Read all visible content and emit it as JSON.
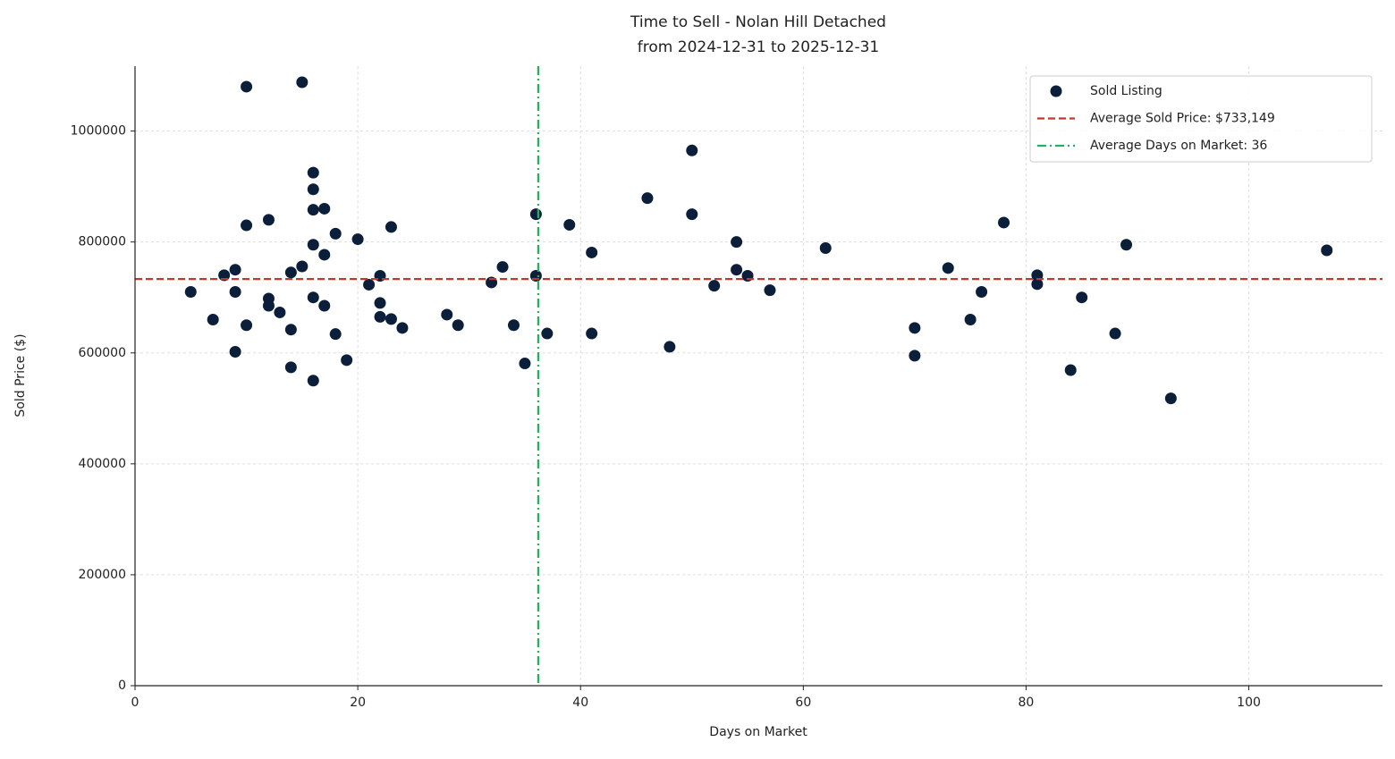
{
  "chart_data": {
    "type": "scatter",
    "title": "Time to Sell - Nolan Hill Detached",
    "subtitle": "from 2024-12-31 to 2025-12-31",
    "x_label": "Days on Market",
    "y_label": "Sold Price ($)",
    "x": [
      10,
      15,
      16,
      16,
      16,
      17,
      16,
      17,
      18,
      10,
      12,
      20,
      23,
      5,
      7,
      8,
      9,
      9,
      9,
      10,
      12,
      12,
      13,
      14,
      14,
      14,
      15,
      16,
      17,
      18,
      16,
      19,
      21,
      22,
      22,
      22,
      23,
      24,
      28,
      29,
      32,
      33,
      34,
      35,
      36,
      36,
      37,
      39,
      41,
      41,
      46,
      48,
      50,
      50,
      52,
      54,
      54,
      55,
      57,
      62,
      70,
      70,
      73,
      75,
      76,
      78,
      81,
      81,
      84,
      85,
      88,
      89,
      93,
      107
    ],
    "series": [
      {
        "name": "Sold Listing",
        "color": "#0b1e3a",
        "values": [
          1080000,
          1088000,
          925000,
          895000,
          858000,
          860000,
          795000,
          777000,
          815000,
          830000,
          840000,
          805000,
          827000,
          710000,
          660000,
          740000,
          750000,
          710000,
          602000,
          650000,
          698000,
          685000,
          673000,
          745000,
          642000,
          574000,
          756000,
          700000,
          685000,
          634000,
          550000,
          587000,
          723000,
          739000,
          690000,
          665000,
          661000,
          645000,
          669000,
          650000,
          727000,
          755000,
          650000,
          581000,
          850000,
          739000,
          635000,
          831000,
          781000,
          635000,
          879000,
          611000,
          965000,
          850000,
          721000,
          800000,
          750000,
          739000,
          713000,
          789000,
          645000,
          595000,
          753000,
          660000,
          710000,
          835000,
          740000,
          724000,
          569000,
          700000,
          635000,
          795000,
          518000,
          785000
        ]
      }
    ],
    "hlines": [
      {
        "value": 733149,
        "label": "Average Sold Price: $733,149",
        "color": "#c0392b",
        "style": "dashed"
      }
    ],
    "vlines": [
      {
        "value": 36.2,
        "label": "Average Days on Market: 36",
        "color": "#27ae60",
        "style": "dashdot"
      }
    ],
    "xlim": [
      0,
      112
    ],
    "ylim": [
      0,
      1117000
    ],
    "xticks": [
      0,
      20,
      40,
      60,
      80,
      100
    ],
    "yticks": [
      0,
      200000,
      400000,
      600000,
      800000,
      1000000
    ],
    "grid": true,
    "legend": "upper right"
  }
}
